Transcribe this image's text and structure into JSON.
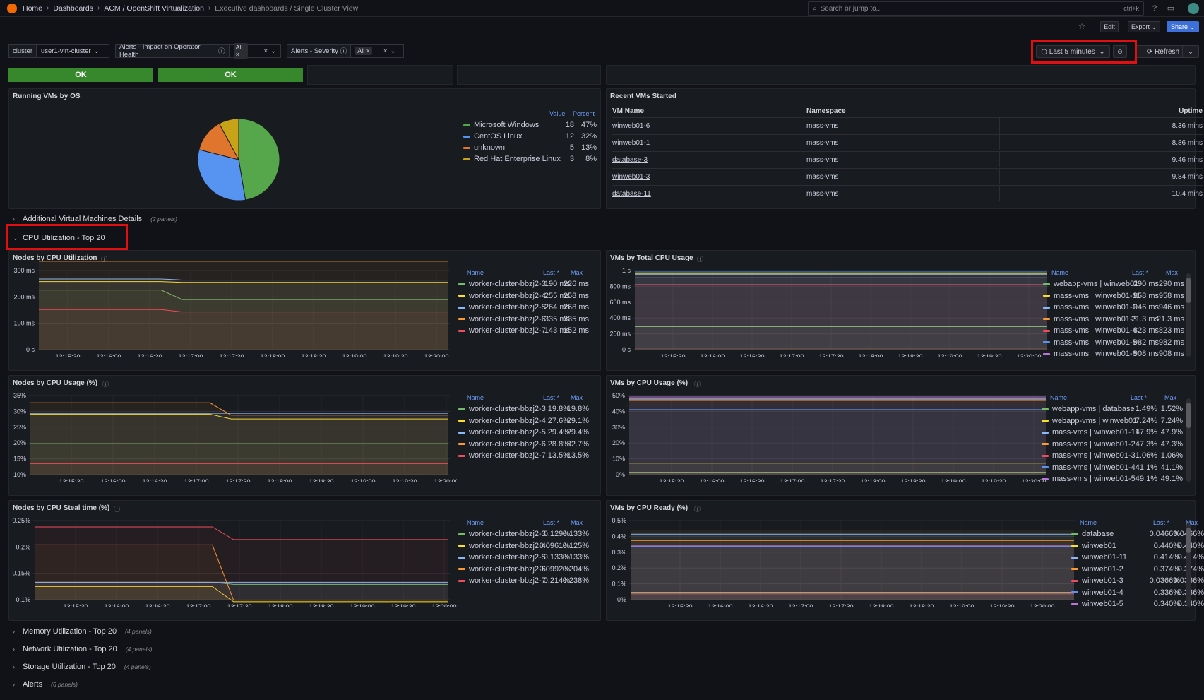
{
  "breadcrumb": [
    "Home",
    "Dashboards",
    "ACM / OpenShift Virtualization",
    "Executive dashboards / Single Cluster View"
  ],
  "search": {
    "placeholder": "Search or jump to...",
    "shortcut": "ctrl+k"
  },
  "toolbar": {
    "edit": "Edit",
    "export": "Export",
    "share": "Share"
  },
  "variables": {
    "cluster_label": "cluster",
    "cluster_value": "user1-virt-cluster",
    "impact_label": "Alerts - Impact on Operator Health",
    "impact_value": "All",
    "severity_label": "Alerts - Severity",
    "severity_value": "All"
  },
  "timepicker": {
    "range": "Last 5 minutes",
    "refresh": "Refresh"
  },
  "status": {
    "ok1": "OK",
    "ok2": "OK"
  },
  "running_vms": {
    "title": "Running VMs by OS",
    "headers": {
      "value": "Value",
      "percent": "Percent"
    },
    "items": [
      {
        "name": "Microsoft Windows",
        "value": "18",
        "percent": "47%",
        "color": "#56a64b"
      },
      {
        "name": "CentOS Linux",
        "value": "12",
        "percent": "32%",
        "color": "#5794f2"
      },
      {
        "name": "unknown",
        "value": "5",
        "percent": "13%",
        "color": "#e0752d"
      },
      {
        "name": "Red Hat Enterprise Linux",
        "value": "3",
        "percent": "8%",
        "color": "#c8a317"
      }
    ]
  },
  "recent_vms": {
    "title": "Recent VMs Started",
    "headers": {
      "name": "VM Name",
      "ns": "Namespace",
      "uptime": "Uptime"
    },
    "rows": [
      {
        "name": "winweb01-6",
        "ns": "mass-vms",
        "uptime": "8.36 mins"
      },
      {
        "name": "winweb01-1",
        "ns": "mass-vms",
        "uptime": "8.86 mins"
      },
      {
        "name": "database-3",
        "ns": "mass-vms",
        "uptime": "9.46 mins"
      },
      {
        "name": "winweb01-3",
        "ns": "mass-vms",
        "uptime": "9.84 mins"
      },
      {
        "name": "database-11",
        "ns": "mass-vms",
        "uptime": "10.4 mins"
      }
    ]
  },
  "rows": {
    "additional": {
      "title": "Additional Virtual Machines Details",
      "count": "(2 panels)"
    },
    "cpu": {
      "title": "CPU Utilization - Top 20"
    },
    "memory": {
      "title": "Memory Utilization - Top 20",
      "count": "(4 panels)"
    },
    "network": {
      "title": "Network Utilization - Top 20",
      "count": "(4 panels)"
    },
    "storage": {
      "title": "Storage Utilization - Top 20",
      "count": "(4 panels)"
    },
    "alerts": {
      "title": "Alerts",
      "count": "(6 panels)"
    }
  },
  "legend_headers": {
    "name": "Name",
    "last": "Last *",
    "max": "Max"
  },
  "xticks": [
    "13:15:30",
    "13:16:00",
    "13:16:30",
    "13:17:00",
    "13:17:30",
    "13:18:00",
    "13:18:30",
    "13:19:00",
    "13:19:30",
    "13:20:00"
  ],
  "panels": {
    "nodes_cpu_util": {
      "title": "Nodes by CPU Utilization",
      "yticks": [
        "0 s",
        "100 ms",
        "200 ms",
        "300 ms"
      ],
      "legend": [
        {
          "name": "worker-cluster-bbzj2-3",
          "last": "190 ms",
          "max": "226 ms",
          "color": "#73bf69"
        },
        {
          "name": "worker-cluster-bbzj2-4",
          "last": "255 ms",
          "max": "258 ms",
          "color": "#fade2a"
        },
        {
          "name": "worker-cluster-bbzj2-5",
          "last": "264 ms",
          "max": "268 ms",
          "color": "#8ab8ff"
        },
        {
          "name": "worker-cluster-bbzj2-6",
          "last": "335 ms",
          "max": "335 ms",
          "color": "#ff9830"
        },
        {
          "name": "worker-cluster-bbzj2-7",
          "last": "143 ms",
          "max": "152 ms",
          "color": "#f2495c"
        }
      ]
    },
    "vms_total_cpu": {
      "title": "VMs by Total CPU Usage",
      "yticks": [
        "0 s",
        "200 ms",
        "400 ms",
        "600 ms",
        "800 ms",
        "1 s"
      ],
      "legend": [
        {
          "name": "webapp-vms | winweb01",
          "last": "290 ms",
          "max": "290 ms",
          "color": "#73bf69"
        },
        {
          "name": "mass-vms | winweb01-11",
          "last": "958 ms",
          "max": "958 ms",
          "color": "#fade2a"
        },
        {
          "name": "mass-vms | winweb01-2",
          "last": "946 ms",
          "max": "946 ms",
          "color": "#8ab8ff"
        },
        {
          "name": "mass-vms | winweb01-3",
          "last": "21.3 ms",
          "max": "21.3 ms",
          "color": "#ff9830"
        },
        {
          "name": "mass-vms | winweb01-4",
          "last": "823 ms",
          "max": "823 ms",
          "color": "#f2495c"
        },
        {
          "name": "mass-vms | winweb01-5",
          "last": "982 ms",
          "max": "982 ms",
          "color": "#5794f2"
        },
        {
          "name": "mass-vms | winweb01-6",
          "last": "908 ms",
          "max": "908 ms",
          "color": "#b877d9"
        }
      ]
    },
    "nodes_cpu_usage": {
      "title": "Nodes by CPU Usage (%)",
      "yticks": [
        "10%",
        "15%",
        "20%",
        "25%",
        "30%",
        "35%"
      ],
      "legend": [
        {
          "name": "worker-cluster-bbzj2-3",
          "last": "19.8%",
          "max": "19.8%",
          "color": "#73bf69"
        },
        {
          "name": "worker-cluster-bbzj2-4",
          "last": "27.6%",
          "max": "29.1%",
          "color": "#fade2a"
        },
        {
          "name": "worker-cluster-bbzj2-5",
          "last": "29.4%",
          "max": "29.4%",
          "color": "#8ab8ff"
        },
        {
          "name": "worker-cluster-bbzj2-6",
          "last": "28.8%",
          "max": "32.7%",
          "color": "#ff9830"
        },
        {
          "name": "worker-cluster-bbzj2-7",
          "last": "13.5%",
          "max": "13.5%",
          "color": "#f2495c"
        }
      ]
    },
    "vms_cpu_usage": {
      "title": "VMs by CPU Usage (%)",
      "yticks": [
        "0%",
        "10%",
        "20%",
        "30%",
        "40%",
        "50%"
      ],
      "legend": [
        {
          "name": "webapp-vms | database",
          "last": "1.49%",
          "max": "1.52%",
          "color": "#73bf69"
        },
        {
          "name": "webapp-vms | winweb01",
          "last": "7.24%",
          "max": "7.24%",
          "color": "#fade2a"
        },
        {
          "name": "mass-vms | winweb01-11",
          "last": "47.9%",
          "max": "47.9%",
          "color": "#8ab8ff"
        },
        {
          "name": "mass-vms | winweb01-2",
          "last": "47.3%",
          "max": "47.3%",
          "color": "#ff9830"
        },
        {
          "name": "mass-vms | winweb01-3",
          "last": "1.06%",
          "max": "1.06%",
          "color": "#f2495c"
        },
        {
          "name": "mass-vms | winweb01-4",
          "last": "41.1%",
          "max": "41.1%",
          "color": "#5794f2"
        },
        {
          "name": "mass-vms | winweb01-5",
          "last": "49.1%",
          "max": "49.1%",
          "color": "#b877d9"
        }
      ]
    },
    "nodes_cpu_steal": {
      "title": "Nodes by CPU Steal time (%)",
      "yticks": [
        "0.1%",
        "0.15%",
        "0.2%",
        "0.25%"
      ],
      "legend": [
        {
          "name": "worker-cluster-bbzj2-3",
          "last": "0.129%",
          "max": "0.133%",
          "color": "#73bf69"
        },
        {
          "name": "worker-cluster-bbzj2-4",
          "last": "0.0961%",
          "max": "0.125%",
          "color": "#fade2a"
        },
        {
          "name": "worker-cluster-bbzj2-5",
          "last": "0.133%",
          "max": "0.133%",
          "color": "#8ab8ff"
        },
        {
          "name": "worker-cluster-bbzj2-6",
          "last": "0.0992%",
          "max": "0.204%",
          "color": "#ff9830"
        },
        {
          "name": "worker-cluster-bbzj2-7",
          "last": "0.214%",
          "max": "0.238%",
          "color": "#f2495c"
        }
      ]
    },
    "vms_cpu_ready": {
      "title": "VMs by CPU Ready (%)",
      "yticks": [
        "0%",
        "0.1%",
        "0.2%",
        "0.3%",
        "0.4%",
        "0.5%"
      ],
      "legend": [
        {
          "name": "database",
          "last": "0.0466%",
          "max": "0.0466%",
          "color": "#73bf69"
        },
        {
          "name": "winweb01",
          "last": "0.440%",
          "max": "0.440%",
          "color": "#fade2a"
        },
        {
          "name": "winweb01-11",
          "last": "0.414%",
          "max": "0.414%",
          "color": "#8ab8ff"
        },
        {
          "name": "winweb01-2",
          "last": "0.374%",
          "max": "0.374%",
          "color": "#ff9830"
        },
        {
          "name": "winweb01-3",
          "last": "0.0366%",
          "max": "0.0366%",
          "color": "#f2495c"
        },
        {
          "name": "winweb01-4",
          "last": "0.336%",
          "max": "0.336%",
          "color": "#5794f2"
        },
        {
          "name": "winweb01-5",
          "last": "0.340%",
          "max": "0.340%",
          "color": "#b877d9"
        }
      ]
    }
  }
}
